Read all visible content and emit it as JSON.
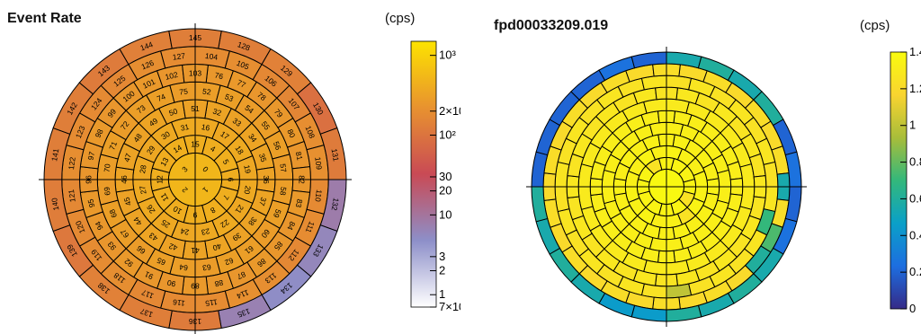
{
  "panels": {
    "left": {
      "title": "Event Rate",
      "unit": "(cps)",
      "colorbar": {
        "scale": "log",
        "range": [
          0.7,
          1500
        ],
        "palette": [
          "#ffffff",
          "#8d8fc9",
          "#c94a55",
          "#e8922f",
          "#fde300"
        ],
        "tick_labels": [
          "10³",
          "2×10²",
          "10²",
          "30",
          "20",
          "10",
          "3",
          "2",
          "1",
          "7×10⁻¹"
        ],
        "tick_values": [
          1000,
          200,
          100,
          30,
          20,
          10,
          3,
          2,
          1,
          0.7
        ]
      }
    },
    "right": {
      "title": "fpd00033209.019",
      "unit": "(cps)",
      "colorbar": {
        "scale": "linear",
        "range": [
          0,
          1.4
        ],
        "palette": [
          "#352a87",
          "#1d6ee0",
          "#0aa0c8",
          "#33b87b",
          "#a8bd3a",
          "#f9d430",
          "#f9fb0e"
        ],
        "tick_labels": [
          "1.4",
          "1.2",
          "1",
          "0.8",
          "0.6",
          "0.4",
          "0.2",
          "0"
        ],
        "tick_values": [
          1.4,
          1.2,
          1.0,
          0.8,
          0.6,
          0.4,
          0.2,
          0
        ]
      }
    }
  },
  "chart_data": [
    {
      "type": "heatmap",
      "title": "Event Rate",
      "layout": "polar-pixel-map",
      "rings": [
        {
          "start": 0,
          "values": [
            520,
            520,
            520,
            520
          ],
          "labels": [
            "0",
            "1",
            "2",
            "3"
          ]
        },
        {
          "start": 4,
          "values": [
            430,
            440,
            420,
            430,
            440,
            430,
            420,
            440,
            430,
            420,
            440,
            430
          ],
          "labels": [
            "4",
            "5",
            "6",
            "7",
            "8",
            "9",
            "10",
            "11",
            "12",
            "13",
            "14",
            "15"
          ]
        },
        {
          "start": 16,
          "values": [
            380,
            370,
            390,
            360,
            380,
            370,
            390,
            380,
            360,
            370,
            390,
            380,
            370,
            360,
            380,
            390
          ],
          "labels": [
            "16",
            "17",
            "18",
            "19",
            "20",
            "21",
            "22",
            "23",
            "24",
            "25",
            "26",
            "27",
            "28",
            "29",
            "30",
            "31"
          ]
        },
        {
          "start": 32,
          "values": [
            330,
            320,
            340,
            330,
            320,
            340,
            330,
            320,
            340,
            330,
            320,
            340,
            330,
            320,
            340,
            330,
            320,
            340,
            330,
            320
          ],
          "labels": [
            "32",
            "33",
            "34",
            "35",
            "36",
            "37",
            "38",
            "39",
            "40",
            "41",
            "42",
            "43",
            "44",
            "45",
            "46",
            "47",
            "48",
            "49",
            "50",
            "51"
          ]
        },
        {
          "start": 52,
          "values": [
            290,
            300,
            280,
            290,
            300,
            280,
            290,
            300,
            280,
            290,
            300,
            280,
            290,
            300,
            280,
            290,
            300,
            280,
            290,
            300,
            280,
            290,
            300,
            280
          ],
          "labels": [
            "52",
            "53",
            "54",
            "55",
            "56",
            "57",
            "58",
            "59",
            "60",
            "61",
            "62",
            "63",
            "64",
            "65",
            "66",
            "67",
            "68",
            "69",
            "70",
            "71",
            "72",
            "73",
            "74",
            "75"
          ]
        },
        {
          "start": 76,
          "values": [
            250,
            260,
            240,
            250,
            260,
            240,
            250,
            260,
            240,
            250,
            260,
            240,
            250,
            260,
            240,
            250,
            260,
            240,
            250,
            260,
            240,
            250,
            260,
            240,
            250,
            260,
            240,
            250
          ],
          "labels": [
            "76",
            "77",
            "78",
            "79",
            "80",
            "81",
            "82",
            "83",
            "84",
            "85",
            "86",
            "87",
            "88",
            "89",
            "90",
            "91",
            "92",
            "93",
            "94",
            "95",
            "96",
            "97",
            "98",
            "99",
            "100",
            "101",
            "102",
            "103"
          ]
        },
        {
          "start": 104,
          "values": [
            190,
            200,
            170,
            160,
            200,
            210,
            180,
            190,
            170,
            200,
            210,
            190,
            180,
            170,
            200,
            190,
            180,
            170,
            200,
            190,
            180,
            170,
            200,
            190
          ],
          "labels": [
            "104",
            "105",
            "106",
            "107",
            "108",
            "109",
            "110",
            "111",
            "112",
            "113",
            "114",
            "115",
            "116",
            "117",
            "118",
            "119",
            "120",
            "121",
            "122",
            "123",
            "124",
            "125",
            "126",
            "127"
          ]
        },
        {
          "start": 128,
          "values": [
            130,
            140,
            90,
            120,
            8,
            6,
            5,
            7,
            120,
            130,
            140,
            110,
            125,
            130,
            130,
            120,
            135,
            130
          ],
          "labels": [
            "128",
            "129",
            "130",
            "131",
            "132",
            "133",
            "134",
            "135",
            "136",
            "137",
            "138",
            "139",
            "140",
            "141",
            "142",
            "143",
            "144",
            "145"
          ]
        }
      ]
    },
    {
      "type": "heatmap",
      "title": "fpd00033209.019",
      "layout": "polar-pixel-map",
      "rings": [
        {
          "values": [
            1.38,
            1.38,
            1.38,
            1.38
          ]
        },
        {
          "values": [
            1.36,
            1.35,
            1.36,
            1.25,
            1.36,
            1.35,
            1.36,
            1.36,
            1.35,
            1.36,
            1.25,
            1.35
          ]
        },
        {
          "values": [
            1.35,
            1.34,
            1.33,
            1.35,
            1.34,
            1.35,
            1.25,
            1.34,
            1.33,
            1.35,
            1.34,
            1.35,
            1.34,
            1.33,
            1.35,
            1.34
          ]
        },
        {
          "values": [
            1.34,
            1.33,
            1.34,
            1.33,
            1.34,
            1.33,
            1.34,
            1.33,
            1.34,
            1.33,
            1.34,
            1.33,
            1.34,
            1.33,
            1.34,
            1.33,
            1.34,
            1.33,
            1.34,
            1.33
          ]
        },
        {
          "values": [
            1.33,
            1.33,
            1.33,
            1.33,
            1.33,
            1.33,
            1.33,
            1.33,
            1.33,
            1.33,
            1.33,
            1.33,
            1.33,
            1.33,
            1.33,
            1.33,
            1.33,
            1.33,
            1.33,
            1.33,
            1.33,
            1.33,
            1.33,
            1.33
          ]
        },
        {
          "values": [
            1.32,
            1.32,
            1.32,
            1.32,
            1.32,
            1.32,
            1.32,
            1.32,
            1.32,
            1.32,
            1.32,
            1.32,
            1.32,
            1.32,
            1.32,
            1.32,
            1.32,
            1.32,
            1.32,
            1.32,
            1.32,
            1.32,
            1.32,
            1.32,
            1.32,
            1.32,
            1.32,
            1.32
          ]
        },
        {
          "values": [
            1.3,
            1.3,
            1.3,
            1.3,
            1.3,
            1.3,
            1.3,
            1.3,
            1.3,
            1.3,
            1.3,
            1.3,
            1.3,
            1.3,
            1.3,
            1.3,
            1.3,
            1.3,
            1.3,
            1.3,
            1.3,
            1.3,
            1.3,
            1.3
          ]
        },
        {
          "values": [
            1.28,
            1.26,
            1.28,
            1.26,
            1.28,
            1.26,
            1.28,
            1.26,
            1.28,
            1.26,
            1.28,
            1.26,
            1.28,
            1.26,
            1.28,
            1.26,
            1.28,
            1.26,
            1.28,
            1.26,
            1.28,
            1.26,
            1.28,
            1.26,
            1.28,
            1.26,
            1.28,
            1.26
          ]
        },
        {
          "values": [
            1.25,
            1.27,
            1.25,
            1.27,
            1.25,
            1.27,
            1.25,
            1.27,
            0.7,
            1.27,
            1.25,
            1.27,
            1.25,
            1.0,
            1.25,
            1.27,
            1.25,
            1.27,
            1.25,
            1.27,
            1.25,
            1.27,
            1.25,
            1.27,
            1.25,
            1.27,
            1.25,
            1.27
          ]
        },
        {
          "values": [
            1.2,
            1.22,
            1.2,
            1.22,
            1.2,
            1.22,
            0.55,
            1.22,
            0.75,
            0.6,
            1.2,
            1.22,
            1.2,
            1.22,
            1.2,
            1.22,
            1.2,
            1.22,
            1.2,
            1.22,
            1.2,
            1.22,
            1.2,
            1.22,
            1.2,
            1.22,
            1.2,
            1.22
          ]
        },
        {
          "values": [
            0.55,
            0.6,
            0.55,
            0.6,
            0.2,
            0.25,
            0.2,
            0.25,
            0.55,
            0.6,
            0.55,
            0.6,
            0.45,
            0.45,
            0.55,
            0.6,
            0.55,
            0.6,
            0.2,
            0.2,
            0.2,
            0.2,
            0.25,
            0.2
          ]
        }
      ]
    }
  ]
}
